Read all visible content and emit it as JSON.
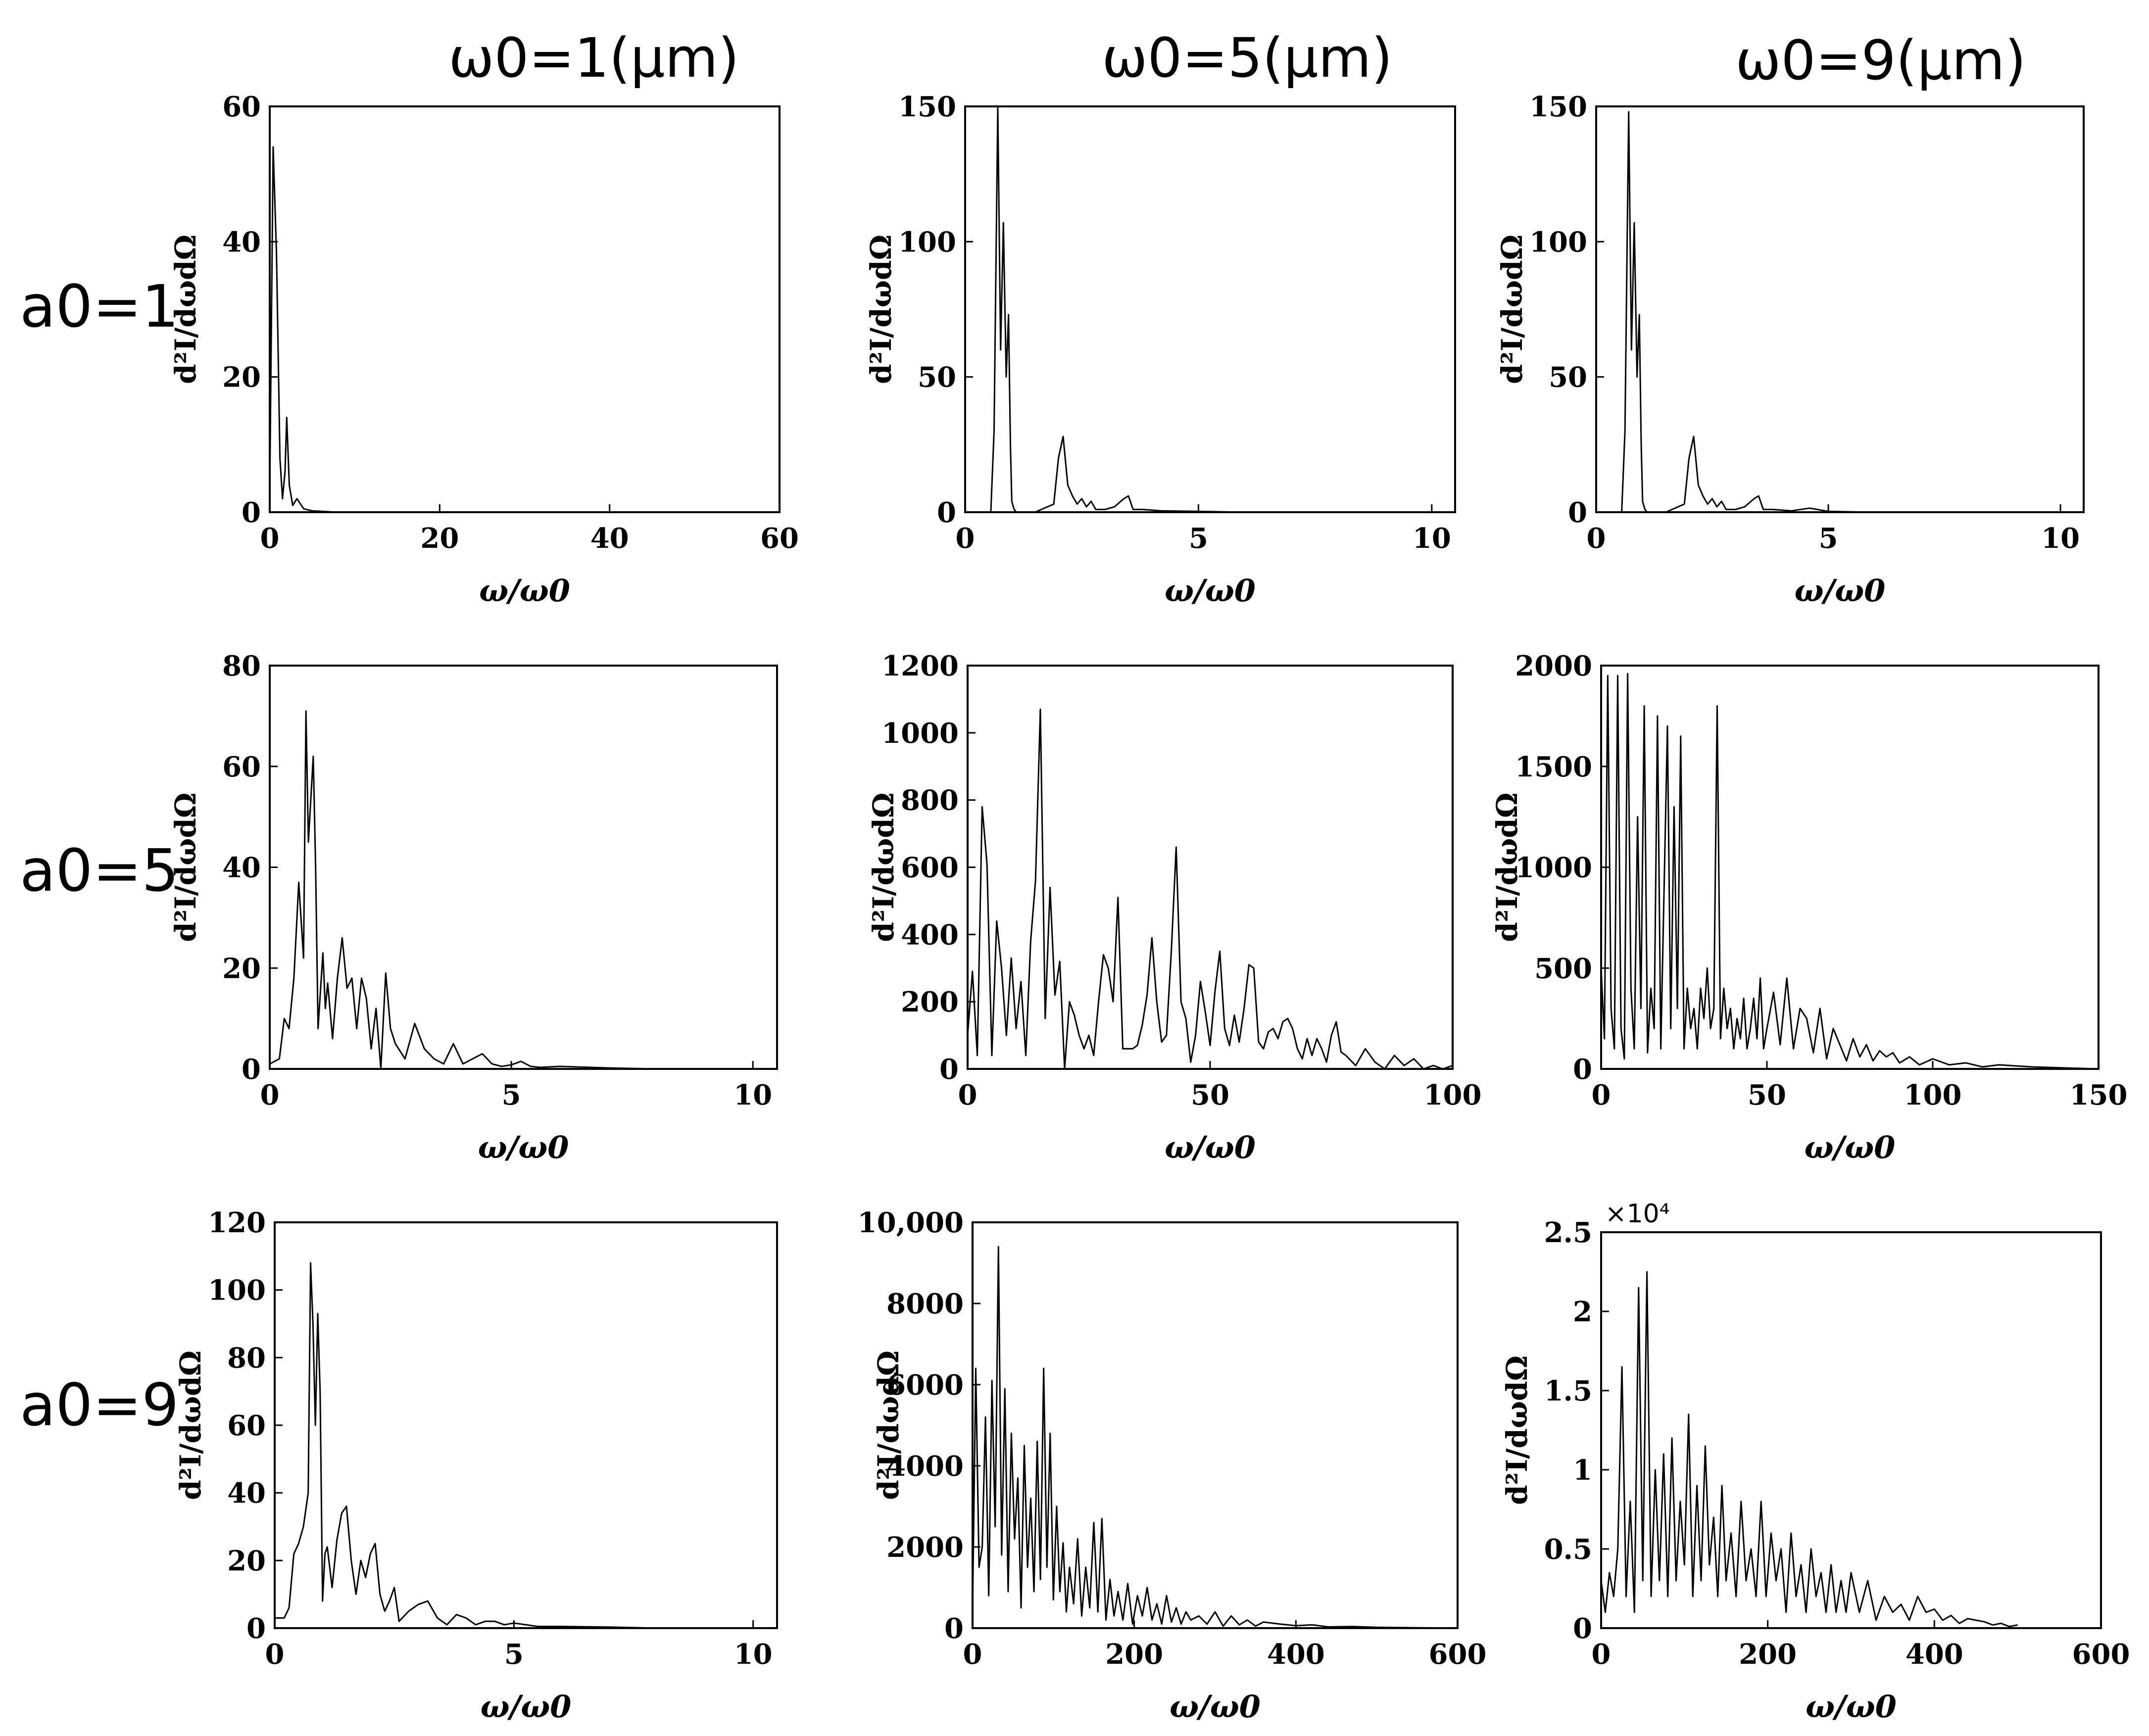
{
  "figure": {
    "column_headers": [
      "ω0=1(μm)",
      "ω0=5(μm)",
      "ω0=9(μm)"
    ],
    "row_headers": [
      "a0=1",
      "a0=5",
      "a0=9"
    ]
  },
  "chart_data": [
    {
      "type": "line",
      "row": 0,
      "col": 0,
      "xlabel": "ω/ω0",
      "ylabel": "d²I/dωdΩ",
      "xlim": [
        0,
        60
      ],
      "ylim": [
        0,
        60
      ],
      "xticks": [
        0,
        20,
        40,
        60
      ],
      "xtick_labels": [
        "0",
        "20",
        "40",
        "60"
      ],
      "yticks": [
        0,
        20,
        40,
        60
      ],
      "ytick_labels": [
        "0",
        "20",
        "40",
        "60"
      ],
      "y_multiplier": "",
      "x": [
        0,
        0.4,
        0.8,
        1.2,
        1.5,
        1.8,
        2.0,
        2.3,
        2.7,
        3.2,
        4.0,
        5.0,
        8.0,
        20,
        40,
        60
      ],
      "y": [
        3,
        54,
        38,
        8,
        2,
        6,
        14,
        4,
        1,
        2,
        0.5,
        0.2,
        0,
        0,
        0,
        0
      ]
    },
    {
      "type": "line",
      "row": 0,
      "col": 1,
      "xlabel": "ω/ω0",
      "ylabel": "d²I/dωdΩ",
      "xlim": [
        0,
        10.5
      ],
      "ylim": [
        0,
        150
      ],
      "xticks": [
        0,
        5,
        10
      ],
      "xtick_labels": [
        "0",
        "5",
        "10"
      ],
      "yticks": [
        0,
        50,
        100,
        150
      ],
      "ytick_labels": [
        "0",
        "50",
        "100",
        "150"
      ],
      "y_multiplier": "",
      "x": [
        0,
        0.55,
        0.62,
        0.7,
        0.76,
        0.82,
        0.88,
        0.93,
        0.97,
        1.0,
        1.05,
        1.1,
        1.5,
        1.9,
        2.0,
        2.1,
        2.2,
        2.3,
        2.4,
        2.5,
        2.6,
        2.7,
        2.8,
        3.0,
        3.2,
        3.4,
        3.5,
        3.6,
        3.8,
        4.2,
        5.0,
        6.0,
        10.5
      ],
      "y": [
        0,
        0,
        30,
        150,
        60,
        107,
        50,
        73,
        25,
        4,
        1,
        0,
        0,
        3,
        20,
        28,
        10,
        6,
        3,
        5,
        2,
        4,
        1,
        1,
        2,
        5,
        6,
        1,
        1,
        0.5,
        0.3,
        0,
        0
      ]
    },
    {
      "type": "line",
      "row": 0,
      "col": 2,
      "xlabel": "ω/ω0",
      "ylabel": "d²I/dωdΩ",
      "xlim": [
        0,
        10.5
      ],
      "ylim": [
        0,
        150
      ],
      "xticks": [
        0,
        5,
        10
      ],
      "xtick_labels": [
        "0",
        "5",
        "10"
      ],
      "yticks": [
        0,
        50,
        100,
        150
      ],
      "ytick_labels": [
        "0",
        "50",
        "100",
        "150"
      ],
      "y_multiplier": "",
      "x": [
        0,
        0.55,
        0.62,
        0.7,
        0.76,
        0.82,
        0.88,
        0.93,
        0.97,
        1.0,
        1.05,
        1.1,
        1.5,
        1.9,
        2.0,
        2.1,
        2.2,
        2.3,
        2.4,
        2.5,
        2.6,
        2.7,
        2.8,
        3.0,
        3.2,
        3.4,
        3.5,
        3.6,
        3.8,
        4.2,
        4.6,
        5.0,
        6.0,
        10.5
      ],
      "y": [
        0,
        0,
        30,
        148,
        60,
        107,
        50,
        73,
        25,
        4,
        1,
        0,
        0,
        3,
        20,
        28,
        10,
        6,
        3,
        5,
        2,
        4,
        1,
        1,
        2,
        5,
        6,
        1,
        1,
        0.5,
        1.5,
        0.3,
        0,
        0
      ]
    },
    {
      "type": "line",
      "row": 1,
      "col": 0,
      "xlabel": "ω/ω0",
      "ylabel": "d²I/dωdΩ",
      "xlim": [
        0,
        10.5
      ],
      "ylim": [
        0,
        80
      ],
      "xticks": [
        0,
        5,
        10
      ],
      "xtick_labels": [
        "0",
        "5",
        "10"
      ],
      "yticks": [
        0,
        20,
        40,
        60,
        80
      ],
      "ytick_labels": [
        "0",
        "20",
        "40",
        "60",
        "80"
      ],
      "y_multiplier": "",
      "x": [
        0,
        0.2,
        0.3,
        0.4,
        0.5,
        0.6,
        0.7,
        0.75,
        0.8,
        0.9,
        0.95,
        1.0,
        1.1,
        1.15,
        1.2,
        1.3,
        1.4,
        1.5,
        1.6,
        1.7,
        1.8,
        1.9,
        2.0,
        2.1,
        2.2,
        2.3,
        2.4,
        2.5,
        2.6,
        2.8,
        3.0,
        3.2,
        3.4,
        3.6,
        3.8,
        4.0,
        4.2,
        4.4,
        4.6,
        4.8,
        5.0,
        5.2,
        5.4,
        5.6,
        6.0,
        7.0,
        8.0,
        10.5
      ],
      "y": [
        1,
        2,
        10,
        8,
        18,
        37,
        22,
        71,
        45,
        62,
        40,
        8,
        23,
        12,
        17,
        6,
        18,
        26,
        16,
        18,
        8,
        18,
        14,
        4,
        12,
        0,
        19,
        8,
        5,
        2,
        9,
        4,
        2,
        1,
        5,
        1,
        2,
        3,
        1,
        0.5,
        0.8,
        1.5,
        0.5,
        0.3,
        0.5,
        0.2,
        0,
        0
      ]
    },
    {
      "type": "line",
      "row": 1,
      "col": 1,
      "xlabel": "ω/ω0",
      "ylabel": "d²I/dωdΩ",
      "xlim": [
        0,
        100
      ],
      "ylim": [
        0,
        1200
      ],
      "xticks": [
        0,
        50,
        100
      ],
      "xtick_labels": [
        "0",
        "50",
        "100"
      ],
      "yticks": [
        0,
        200,
        400,
        600,
        800,
        1000,
        1200
      ],
      "ytick_labels": [
        "0",
        "200",
        "400",
        "600",
        "800",
        "1000",
        "1200"
      ],
      "y_multiplier": "",
      "x": [
        0,
        1,
        2,
        3,
        4,
        5,
        6,
        7,
        8,
        9,
        10,
        11,
        12,
        13,
        14,
        15,
        16,
        17,
        18,
        19,
        20,
        21,
        22,
        23,
        24,
        25,
        26,
        27,
        28,
        29,
        30,
        31,
        32,
        33,
        34,
        35,
        36,
        37,
        38,
        39,
        40,
        41,
        42,
        43,
        44,
        45,
        46,
        47,
        48,
        49,
        50,
        51,
        52,
        53,
        54,
        55,
        56,
        57,
        58,
        59,
        60,
        61,
        62,
        63,
        64,
        65,
        66,
        67,
        68,
        69,
        70,
        71,
        72,
        73,
        74,
        75,
        76,
        77,
        78,
        80,
        82,
        84,
        86,
        88,
        90,
        92,
        94,
        96,
        98,
        100
      ],
      "y": [
        100,
        290,
        40,
        780,
        610,
        40,
        440,
        300,
        100,
        330,
        120,
        260,
        40,
        380,
        560,
        1070,
        150,
        540,
        220,
        320,
        0,
        200,
        160,
        100,
        60,
        100,
        40,
        200,
        340,
        300,
        200,
        510,
        60,
        60,
        60,
        70,
        130,
        220,
        390,
        200,
        80,
        100,
        350,
        660,
        200,
        150,
        20,
        100,
        260,
        170,
        70,
        230,
        350,
        120,
        70,
        160,
        80,
        180,
        310,
        300,
        80,
        60,
        110,
        120,
        90,
        140,
        150,
        120,
        60,
        30,
        90,
        40,
        90,
        60,
        20,
        100,
        140,
        50,
        40,
        10,
        60,
        20,
        0,
        40,
        10,
        30,
        0,
        10,
        0,
        10
      ]
    },
    {
      "type": "line",
      "row": 1,
      "col": 2,
      "xlabel": "ω/ω0",
      "ylabel": "d²I/dωdΩ",
      "xlim": [
        0,
        150
      ],
      "ylim": [
        0,
        2000
      ],
      "xticks": [
        0,
        50,
        100,
        150
      ],
      "xtick_labels": [
        "0",
        "50",
        "100",
        "150"
      ],
      "yticks": [
        0,
        500,
        1000,
        1500,
        2000
      ],
      "ytick_labels": [
        "0",
        "500",
        "1000",
        "1500",
        "2000"
      ],
      "y_multiplier": "",
      "x": [
        0,
        1,
        2,
        3,
        4,
        5,
        6,
        7,
        8,
        9,
        10,
        11,
        12,
        13,
        14,
        15,
        16,
        17,
        18,
        19,
        20,
        21,
        22,
        23,
        24,
        25,
        26,
        27,
        28,
        29,
        30,
        31,
        32,
        33,
        34,
        35,
        36,
        37,
        38,
        39,
        40,
        41,
        42,
        43,
        44,
        45,
        46,
        47,
        48,
        49,
        50,
        52,
        54,
        56,
        58,
        60,
        62,
        64,
        66,
        68,
        70,
        72,
        74,
        76,
        78,
        80,
        82,
        84,
        86,
        88,
        90,
        93,
        96,
        100,
        105,
        110,
        115,
        120,
        130,
        140,
        150
      ],
      "y": [
        500,
        150,
        1950,
        300,
        100,
        1950,
        200,
        50,
        1960,
        400,
        100,
        1250,
        300,
        1800,
        80,
        400,
        200,
        1750,
        100,
        900,
        1700,
        200,
        1300,
        300,
        1650,
        100,
        400,
        200,
        300,
        100,
        400,
        250,
        500,
        200,
        300,
        1800,
        150,
        400,
        200,
        300,
        100,
        250,
        150,
        350,
        100,
        200,
        350,
        150,
        450,
        100,
        200,
        380,
        120,
        450,
        100,
        300,
        250,
        80,
        300,
        50,
        200,
        120,
        40,
        150,
        60,
        120,
        40,
        90,
        60,
        80,
        30,
        60,
        20,
        50,
        20,
        30,
        10,
        20,
        10,
        5,
        0
      ]
    },
    {
      "type": "line",
      "row": 2,
      "col": 0,
      "xlabel": "ω/ω0",
      "ylabel": "d²I/dωdΩ",
      "xlim": [
        0,
        10.5
      ],
      "ylim": [
        0,
        120
      ],
      "xticks": [
        0,
        5,
        10
      ],
      "xtick_labels": [
        "0",
        "5",
        "10"
      ],
      "yticks": [
        0,
        20,
        40,
        60,
        80,
        100,
        120
      ],
      "ytick_labels": [
        "0",
        "20",
        "40",
        "60",
        "80",
        "100",
        "120"
      ],
      "y_multiplier": "",
      "x": [
        0,
        0.2,
        0.3,
        0.4,
        0.5,
        0.6,
        0.7,
        0.75,
        0.8,
        0.85,
        0.9,
        0.95,
        1.0,
        1.05,
        1.1,
        1.2,
        1.3,
        1.4,
        1.5,
        1.6,
        1.7,
        1.8,
        1.9,
        2.0,
        2.1,
        2.2,
        2.3,
        2.4,
        2.5,
        2.6,
        2.8,
        3.0,
        3.2,
        3.4,
        3.6,
        3.8,
        4.0,
        4.2,
        4.4,
        4.6,
        4.8,
        5.0,
        5.5,
        6.0,
        7.0,
        8.0,
        10.5
      ],
      "y": [
        3,
        3,
        6,
        22,
        25,
        30,
        40,
        108,
        90,
        60,
        93,
        70,
        8,
        22,
        24,
        12,
        26,
        34,
        36,
        20,
        10,
        20,
        15,
        22,
        25,
        10,
        5,
        8,
        12,
        2,
        5,
        7,
        8,
        3,
        1,
        4,
        3,
        1,
        2,
        2,
        1,
        1.5,
        0.5,
        0.5,
        0.3,
        0,
        0
      ]
    },
    {
      "type": "line",
      "row": 2,
      "col": 1,
      "xlabel": "ω/ω0",
      "ylabel": "d²I/dωdΩ",
      "xlim": [
        0,
        600
      ],
      "ylim": [
        0,
        10000
      ],
      "xticks": [
        0,
        200,
        400,
        600
      ],
      "xtick_labels": [
        "0",
        "200",
        "400",
        "600"
      ],
      "yticks": [
        0,
        2000,
        4000,
        6000,
        8000,
        10000
      ],
      "ytick_labels": [
        "0",
        "2000",
        "4000",
        "6000",
        "8000",
        "10,000"
      ],
      "y_multiplier": "",
      "x": [
        0,
        4,
        8,
        12,
        16,
        20,
        24,
        28,
        32,
        36,
        40,
        44,
        48,
        52,
        56,
        60,
        64,
        68,
        72,
        76,
        80,
        84,
        88,
        92,
        96,
        100,
        104,
        108,
        112,
        116,
        120,
        125,
        130,
        135,
        140,
        145,
        150,
        155,
        160,
        165,
        170,
        175,
        180,
        186,
        192,
        198,
        204,
        210,
        216,
        222,
        228,
        234,
        240,
        246,
        252,
        258,
        264,
        270,
        280,
        290,
        300,
        310,
        320,
        330,
        340,
        350,
        360,
        380,
        400,
        420,
        440,
        470,
        500,
        550,
        600
      ],
      "y": [
        400,
        6400,
        1500,
        2000,
        5200,
        800,
        6100,
        2500,
        9400,
        1800,
        5900,
        900,
        4800,
        2200,
        3700,
        500,
        4500,
        1500,
        3200,
        900,
        4600,
        1200,
        6400,
        1500,
        4800,
        700,
        3000,
        900,
        2100,
        400,
        1500,
        600,
        2200,
        300,
        1500,
        500,
        2600,
        400,
        2700,
        200,
        1200,
        300,
        900,
        200,
        1100,
        100,
        800,
        300,
        1000,
        200,
        600,
        100,
        800,
        150,
        500,
        100,
        400,
        200,
        300,
        100,
        400,
        50,
        300,
        80,
        200,
        50,
        150,
        100,
        60,
        80,
        30,
        40,
        20,
        10,
        0
      ]
    },
    {
      "type": "line",
      "row": 2,
      "col": 2,
      "xlabel": "ω/ω0",
      "ylabel": "d²I/dωdΩ",
      "xlim": [
        0,
        600
      ],
      "ylim": [
        0,
        2.5
      ],
      "xticks": [
        0,
        200,
        400,
        600
      ],
      "xtick_labels": [
        "0",
        "200",
        "400",
        "600"
      ],
      "yticks": [
        0,
        0.5,
        1,
        1.5,
        2,
        2.5
      ],
      "ytick_labels": [
        "0",
        "0.5",
        "1",
        "1.5",
        "2",
        "2.5"
      ],
      "y_multiplier": "×10⁴",
      "x": [
        0,
        5,
        10,
        15,
        20,
        25,
        30,
        35,
        40,
        45,
        50,
        55,
        60,
        65,
        70,
        75,
        80,
        85,
        90,
        95,
        100,
        105,
        110,
        115,
        120,
        125,
        130,
        135,
        140,
        145,
        150,
        156,
        162,
        168,
        174,
        180,
        186,
        192,
        198,
        204,
        210,
        216,
        222,
        228,
        234,
        240,
        246,
        252,
        258,
        264,
        270,
        276,
        282,
        288,
        294,
        300,
        310,
        320,
        330,
        340,
        350,
        360,
        370,
        380,
        390,
        400,
        410,
        420,
        430,
        440,
        450,
        460,
        470,
        480,
        490,
        500
      ],
      "y": [
        0.3,
        0.1,
        0.35,
        0.2,
        0.5,
        1.65,
        0.2,
        0.8,
        0.1,
        2.15,
        0.3,
        2.25,
        0.2,
        1.0,
        0.3,
        1.1,
        0.2,
        1.2,
        0.3,
        0.8,
        0.4,
        1.35,
        0.2,
        0.9,
        0.3,
        1.15,
        0.4,
        0.7,
        0.2,
        0.9,
        0.3,
        0.6,
        0.2,
        0.8,
        0.3,
        0.5,
        0.2,
        0.8,
        0.2,
        0.6,
        0.3,
        0.5,
        0.1,
        0.6,
        0.2,
        0.4,
        0.1,
        0.5,
        0.2,
        0.35,
        0.1,
        0.4,
        0.1,
        0.3,
        0.1,
        0.35,
        0.1,
        0.3,
        0.05,
        0.2,
        0.1,
        0.15,
        0.05,
        0.2,
        0.1,
        0.12,
        0.05,
        0.08,
        0.03,
        0.06,
        0.05,
        0.04,
        0.02,
        0.03,
        0.01,
        0.02
      ]
    }
  ]
}
